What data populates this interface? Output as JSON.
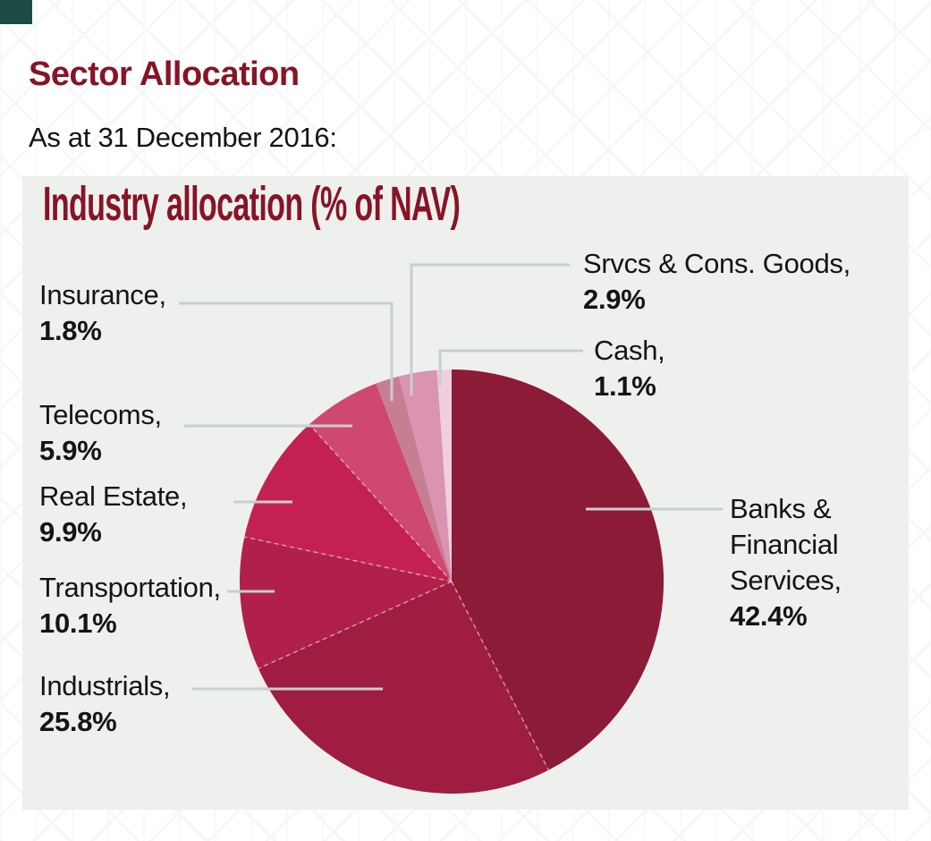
{
  "page": {
    "title": "Sector Allocation",
    "subtitle": "As at 31 December 2016:"
  },
  "panel": {
    "heading": "Industry allocation (% of NAV)"
  },
  "chart_data": {
    "type": "pie",
    "title": "Industry allocation (% of NAV)",
    "start_angle_deg": 0,
    "direction": "clockwise",
    "legend_position": "callout-labels",
    "categories": [
      "Banks & Financial Services",
      "Industrials",
      "Transportation",
      "Real Estate",
      "Telecoms",
      "Insurance",
      "Srvcs & Cons. Goods",
      "Cash"
    ],
    "values": [
      42.4,
      25.8,
      10.1,
      9.9,
      5.9,
      1.8,
      2.9,
      1.1
    ],
    "slices": [
      {
        "label": "Banks & Financial Services",
        "value": 42.4,
        "color": "#8c1b38"
      },
      {
        "label": "Industrials",
        "value": 25.8,
        "color": "#9f1d40"
      },
      {
        "label": "Transportation",
        "value": 10.1,
        "color": "#b1204a"
      },
      {
        "label": "Real Estate",
        "value": 9.9,
        "color": "#c42153"
      },
      {
        "label": "Telecoms",
        "value": 5.9,
        "color": "#ce4870"
      },
      {
        "label": "Insurance",
        "value": 1.8,
        "color": "#c67e93"
      },
      {
        "label": "Srvcs & Cons. Goods",
        "value": 2.9,
        "color": "#da93b0"
      },
      {
        "label": "Cash",
        "value": 1.1,
        "color": "#efcfdd"
      }
    ]
  },
  "callouts": {
    "insurance": {
      "name": "Insurance,",
      "pct": "1.8%"
    },
    "telecoms": {
      "name": "Telecoms,",
      "pct": "5.9%"
    },
    "real_estate": {
      "name": "Real Estate,",
      "pct": "9.9%"
    },
    "transportation": {
      "name": "Transportation,",
      "pct": "10.1%"
    },
    "industrials": {
      "name": "Industrials,",
      "pct": "25.8%"
    },
    "srvcs": {
      "name": "Srvcs & Cons. Goods,",
      "pct": "2.9%"
    },
    "cash": {
      "name": "Cash,",
      "pct": "1.1%"
    },
    "banks": {
      "line1": "Banks &",
      "line2": "Financial",
      "line3": "Services,",
      "pct": "42.4%"
    }
  },
  "colors": {
    "accent": "#871425",
    "text": "#141414",
    "panel_bg": "#eef0ed",
    "leader_line": "#c7cfd2",
    "corner_mark": "#1d4b45"
  }
}
